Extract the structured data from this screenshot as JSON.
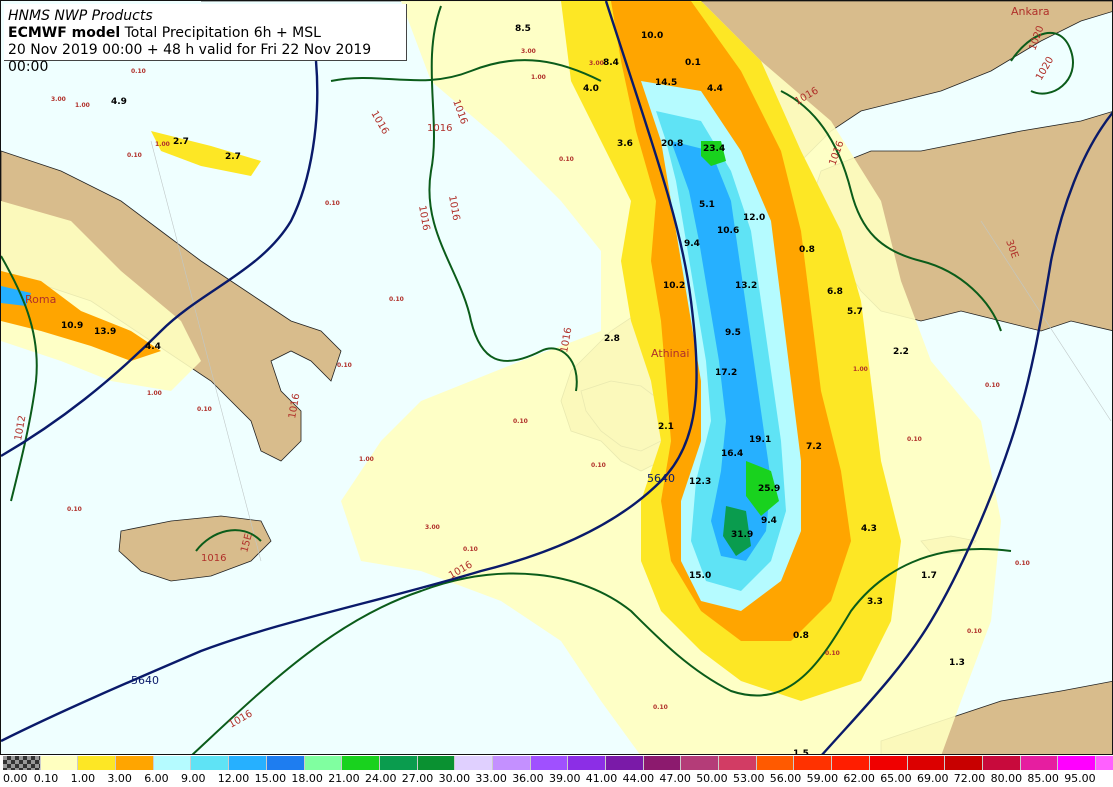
{
  "header": {
    "line1": "HNMS NWP Products",
    "line2_bold": "ECMWF model",
    "line2_rest": " Total Precipitation 6h + MSL",
    "line3": "20 Nov 2019 00:00 + 48 h valid for Fri 22 Nov 2019 00:00"
  },
  "places": {
    "roma": "Roma",
    "athinai": "Athinai",
    "ankara": "Ankara"
  },
  "grid_labels": {
    "lon_15": "15E",
    "lon_30": "30E"
  },
  "z500_labels": {
    "a": "5640",
    "b": "5640"
  },
  "isobar_labels": [
    "1016",
    "1016",
    "1016",
    "1016",
    "1016",
    "1016",
    "1016",
    "1016",
    "1016",
    "1016",
    "1016",
    "1016",
    "1020",
    "1020",
    "1012"
  ],
  "precip_maxima": [
    "8.5",
    "10.0",
    "8.4",
    "0.1",
    "4.0",
    "14.5",
    "4.4",
    "2.7",
    "2.7",
    "4.9",
    "3.6",
    "20.8",
    "23.4",
    "5.1",
    "12.0",
    "10.6",
    "9.4",
    "0.8",
    "10.2",
    "13.2",
    "6.8",
    "10.9",
    "13.9",
    "4.4",
    "2.8",
    "9.5",
    "5.7",
    "2.2",
    "17.2",
    "2.1",
    "19.1",
    "16.4",
    "7.2",
    "12.3",
    "25.9",
    "9.4",
    "31.9",
    "4.3",
    "15.0",
    "1.7",
    "3.3",
    "0.8",
    "1.3",
    "1.5"
  ],
  "contour_small_labels": [
    "3.00",
    "1.00",
    "0.10",
    "1.00",
    "3.00",
    "0.10",
    "1.00",
    "3.00",
    "0.10",
    "0.10",
    "0.10",
    "0.10",
    "1.00",
    "0.10",
    "1.00",
    "3.00",
    "0.10",
    "0.10",
    "0.10",
    "0.10",
    "0.10",
    "0.10",
    "1.00",
    "0.10",
    "0.10",
    "0.10",
    "0.10"
  ],
  "legend": {
    "colors": [
      "checker",
      "#ffffc0",
      "#fde725",
      "#ffa500",
      "#b5fbff",
      "#5fe3f5",
      "#26b0ff",
      "#1e7df0",
      "#80ffa0",
      "#19d21e",
      "#0a9c4e",
      "#0a9131",
      "#e0d0ff",
      "#c490ff",
      "#a050ff",
      "#8c2ee6",
      "#7a1aa8",
      "#8c1a6e",
      "#b43c78",
      "#d23c64",
      "#ff5a00",
      "#ff3200",
      "#ff1e00",
      "#f00000",
      "#dc0000",
      "#c80000",
      "#c80a3c",
      "#e61ea0",
      "#ff00ff",
      "#ff60ff",
      "#ffa0ff"
    ],
    "labels": [
      "0.00",
      "0.10",
      "1.00",
      "3.00",
      "6.00",
      "9.00",
      "12.00",
      "15.00",
      "18.00",
      "21.00",
      "24.00",
      "27.00",
      "30.00",
      "33.00",
      "36.00",
      "39.00",
      "41.00",
      "44.00",
      "47.00",
      "50.00",
      "53.00",
      "56.00",
      "59.00",
      "62.00",
      "65.00",
      "69.00",
      "72.00",
      "80.00",
      "85.00",
      "95.00"
    ]
  }
}
